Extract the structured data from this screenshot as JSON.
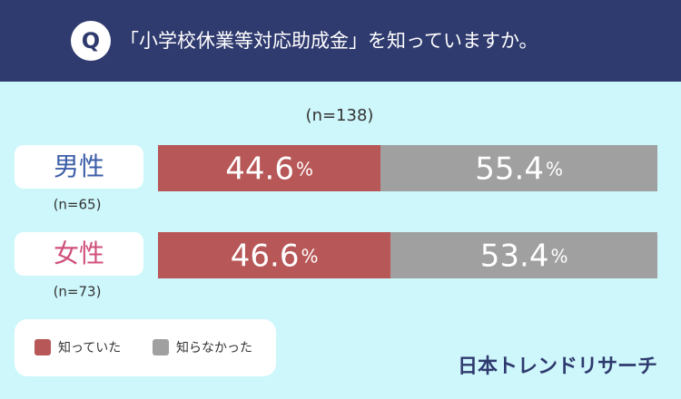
{
  "header": {
    "badge": "Q",
    "title": "「小学校休業等対応助成金」を知っていますか。"
  },
  "chart_data": {
    "type": "stacked-bar-horizontal",
    "subtitle": "(n=138)",
    "categories": [
      "男性",
      "女性"
    ],
    "category_colors": [
      "#3d5ea8",
      "#d0507a"
    ],
    "category_notes": [
      "(n=65)",
      "(n=73)"
    ],
    "xlim": [
      0,
      100
    ],
    "series": [
      {
        "name": "知っていた",
        "color": "#b85757",
        "values": [
          44.6,
          46.6
        ],
        "value_labels": [
          "44.6%",
          "46.6%"
        ]
      },
      {
        "name": "知らなかった",
        "color": "#a0a0a0",
        "values": [
          55.4,
          53.4
        ],
        "value_labels": [
          "55.4%",
          "53.4%"
        ]
      }
    ],
    "legend": "bottom-left"
  },
  "brand": "日本トレンドリサーチ"
}
